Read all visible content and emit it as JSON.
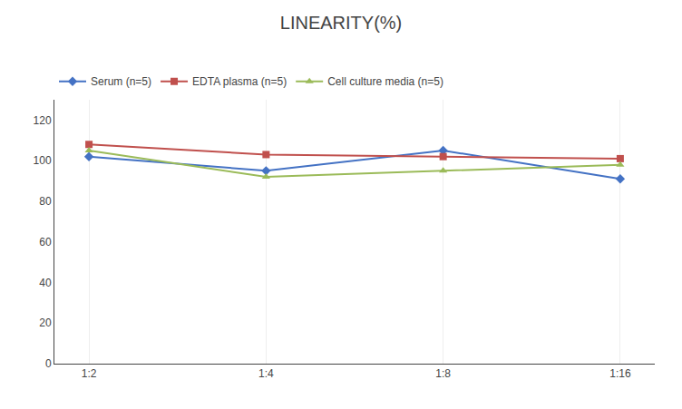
{
  "chart_data": {
    "type": "line",
    "title": "LINEARITY(%)",
    "categories": [
      "1:2",
      "1:4",
      "1:8",
      "1:16"
    ],
    "series": [
      {
        "name": "Serum (n=5)",
        "color": "#4472C4",
        "marker": "diamond",
        "values": [
          102,
          95,
          105,
          91
        ]
      },
      {
        "name": "EDTA plasma (n=5)",
        "color": "#C0504D",
        "marker": "square",
        "values": [
          108,
          103,
          102,
          101
        ]
      },
      {
        "name": "Cell culture media (n=5)",
        "color": "#9BBB59",
        "marker": "triangle",
        "values": [
          105,
          92,
          95,
          98
        ]
      }
    ],
    "ylim": [
      0,
      130
    ],
    "yticks": [
      0,
      20,
      40,
      60,
      80,
      100,
      120
    ],
    "grid": "x",
    "legend": "top"
  }
}
